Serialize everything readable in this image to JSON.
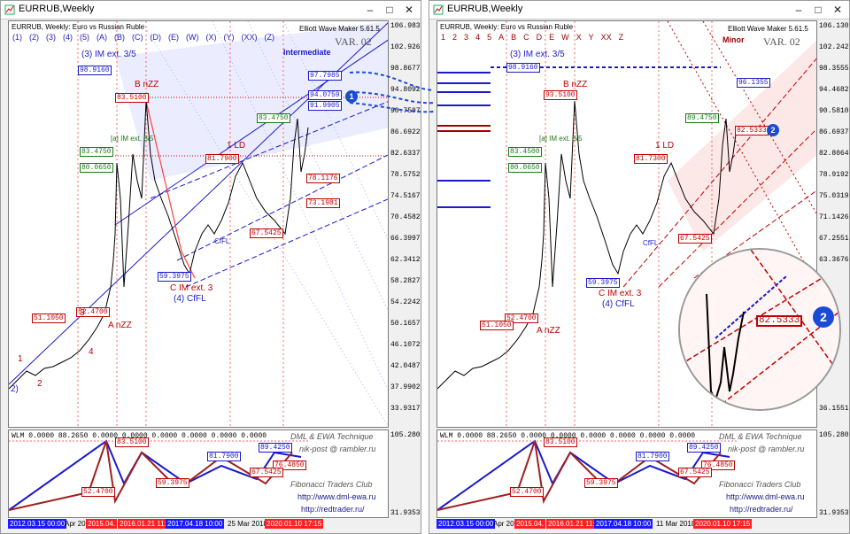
{
  "left_window": {
    "title": "EURRUB,Weekly",
    "symbol_info": "EURRUB, Weekly:  Euro vs Russian Ruble",
    "indicator": "Elliott Wave Maker 5.61.5",
    "variant": "VAR. 02",
    "degree": "Intermediate",
    "wave_labels": [
      "(1)",
      "(2)",
      "(3)",
      "(4)",
      "(5)",
      "(A)",
      "(B)",
      "(C)",
      "(D)",
      "(E)",
      "(W)",
      "(X)",
      "(Y)",
      "(XX)",
      "(Z)"
    ],
    "price_axis": [
      "106.9837",
      "102.9263",
      "98.8677",
      "94.8092",
      "90.7507",
      "86.6922",
      "82.6337",
      "78.5752",
      "74.5167",
      "70.4582",
      "66.3997",
      "62.3412",
      "58.2827",
      "54.2242",
      "50.1657",
      "46.1072",
      "42.0487",
      "37.9902",
      "33.9317",
      "105.2807",
      "31.9353"
    ],
    "price_labels_green": [
      "83.4750",
      "80.0650"
    ],
    "price_labels_red": [
      "83.5100",
      "81.7900",
      "67.5425",
      "52.4700",
      "51.1050",
      "78.1176",
      "73.1981"
    ],
    "price_labels_blue": [
      "98.9160",
      "59.3975",
      "97.7985",
      "94.0759",
      "91.9905"
    ],
    "markers": {
      "im_ext": "(3) IM ext. 3/5",
      "b_nzz": "B nZZ",
      "a_im": "[a] IM ext. 3/5",
      "one_ld": "1 LD",
      "c_im": "C IM ext. 3",
      "four_cfl": "(4) CfFL",
      "a_nzz": "A nZZ",
      "cfl": "CfFL",
      "w1": "1",
      "w2": "2",
      "w3": "3",
      "w4": "4",
      "w2p": "2)"
    },
    "indicator_panel": {
      "header": "WLM 0.0000 88.2650 0.0000 0.0000 0.0000 0.0000 0.0000 0.0000",
      "labels": [
        "83.5100",
        "81.7900",
        "89.4250",
        "76.4850",
        "59.3975",
        "67.5425",
        "52.4700"
      ]
    },
    "time_axis": [
      {
        "text": "2012.03.15 00:00",
        "style": "blue"
      },
      {
        "text": "Apr 201",
        "style": "plain"
      },
      {
        "text": "2015.04.",
        "style": "red"
      },
      {
        "text": "2016.01.21 11:",
        "style": "red"
      },
      {
        "text": "2017.04.18 10:00",
        "style": "blue"
      },
      {
        "text": "25 Mar 2018",
        "style": "plain"
      },
      {
        "text": "2020.01.10 17:15",
        "style": "red"
      }
    ],
    "badge": "1"
  },
  "right_window": {
    "title": "EURRUB,Weekly",
    "symbol_info": "EURRUB, Weekly:  Euro vs Russian Ruble",
    "indicator": "Elliott Wave Maker 5.61.5",
    "variant": "VAR. 02",
    "degree": "Minor",
    "wave_labels": [
      "1",
      "2",
      "3",
      "4",
      "5",
      "A",
      "B",
      "C",
      "D",
      "E",
      "W",
      "X",
      "Y",
      "XX",
      "Z"
    ],
    "price_axis": [
      "106.1301",
      "102.2428",
      "98.3555",
      "94.4682",
      "90.5810",
      "86.6937",
      "82.8064",
      "78.9192",
      "75.0319",
      "71.1426",
      "67.2551",
      "63.3676",
      "",
      "",
      "",
      "",
      "",
      "",
      "36.1551",
      "105.2807",
      "31.9353"
    ],
    "price_labels_green": [
      "89.4750",
      "83.4500",
      "80.0650"
    ],
    "price_labels_red": [
      "93.5100",
      "81.7300",
      "67.5425",
      "52.4700",
      "51.1050",
      "82.5333"
    ],
    "price_labels_blue": [
      "98.9160",
      "59.3975",
      "96.1355"
    ],
    "markers": {
      "im_ext": "(3) IM ext. 3/5",
      "b_nzz": "B nZZ",
      "a_im": "[a] IM ext. 3/5",
      "one_ld": "1 LD",
      "c_im": "C IM ext. 3",
      "four_cfl": "(4) CfFL",
      "a_nzz": "A nZZ",
      "cfl": "CfFL"
    },
    "zoom_label": "82.5333",
    "zoom_badge": "2",
    "indicator_panel": {
      "header": "WLM 0.0000 88.2650 0.0000 0.0000 0.0000 0.0000 0.0000 0.0000",
      "labels": [
        "83.5100",
        "81.7900",
        "89.4250",
        "76.4850",
        "59.3975",
        "67.5425",
        "52.4700"
      ]
    },
    "time_axis": [
      {
        "text": "2012.03.15 00:00",
        "style": "blue"
      },
      {
        "text": "Apr 201",
        "style": "plain"
      },
      {
        "text": "2015.04.",
        "style": "red"
      },
      {
        "text": "2016.01.21 11:",
        "style": "red"
      },
      {
        "text": "2017.04.18 10:00",
        "style": "blue"
      },
      {
        "text": "11 Mar 2018",
        "style": "plain"
      },
      {
        "text": "2020.01.10 17:15",
        "style": "red"
      }
    ],
    "badge": "2"
  },
  "watermark": {
    "technique": "DML & EWA Technique",
    "email": "nik-post @ rambler.ru",
    "club": "Fibonacci   Traders   Club",
    "url1": "http://www.dml-ewa.ru",
    "url2": "http://redtrader.ru/"
  },
  "colors": {
    "bull": "#1a1acc",
    "bear": "#c00000",
    "fib": "#1a7a1a",
    "fan": "#e8ecff",
    "fan_right": "#fde8e8"
  }
}
